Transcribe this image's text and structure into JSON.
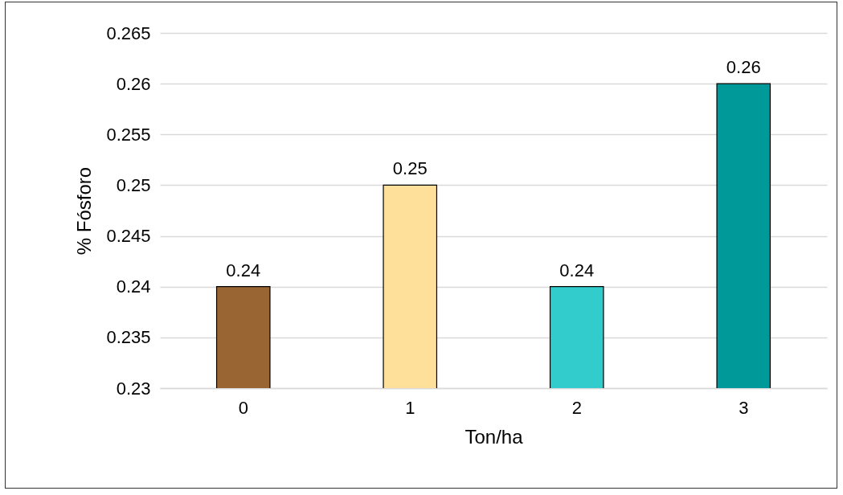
{
  "chart_data": {
    "type": "bar",
    "xlabel": "Ton/ha",
    "ylabel": "% Fósforo",
    "categories": [
      "0",
      "1",
      "2",
      "3"
    ],
    "values": [
      0.24,
      0.25,
      0.24,
      0.26
    ],
    "colors": [
      "#996633",
      "#ffe09a",
      "#33cccc",
      "#009999"
    ],
    "ylim": [
      0.23,
      0.265
    ],
    "yticks": [
      0.23,
      0.235,
      0.24,
      0.245,
      0.25,
      0.255,
      0.26,
      0.265
    ],
    "grid": "y",
    "data_labels": true,
    "legend": false
  }
}
